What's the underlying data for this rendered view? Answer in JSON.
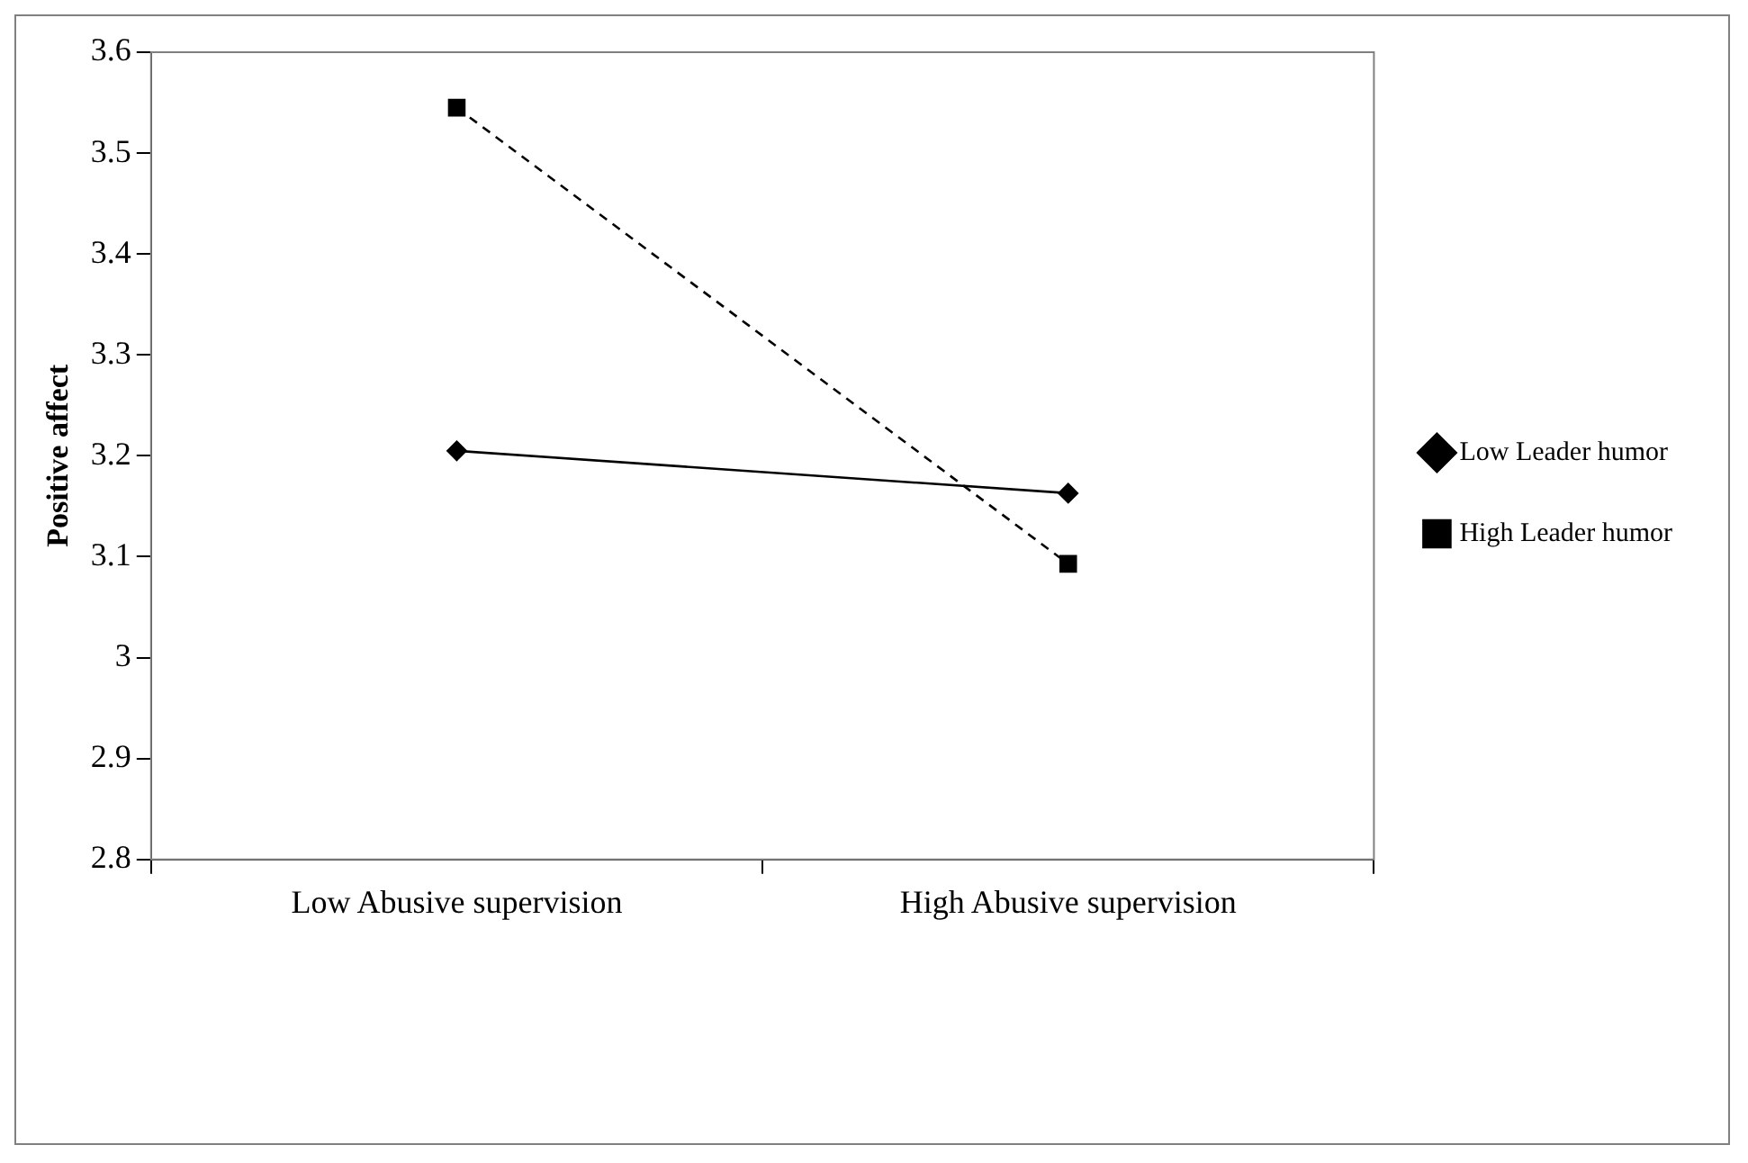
{
  "chart_data": {
    "type": "line",
    "ylabel": "Positive affect",
    "categories": [
      "Low Abusive supervision",
      "High Abusive supervision"
    ],
    "series": [
      {
        "name": "Low Leader humor",
        "color": "#000000",
        "values": [
          3.205,
          3.163
        ],
        "marker": "diamond",
        "line_style": "solid"
      },
      {
        "name": "High Leader humor",
        "color": "#000000",
        "values": [
          3.545,
          3.093
        ],
        "marker": "square",
        "line_style": "dashed"
      }
    ],
    "ylim": [
      2.8,
      3.6
    ],
    "yticks": [
      2.8,
      2.9,
      3,
      3.1,
      3.2,
      3.3,
      3.4,
      3.5,
      3.6
    ],
    "grid": false,
    "legend": "right"
  }
}
